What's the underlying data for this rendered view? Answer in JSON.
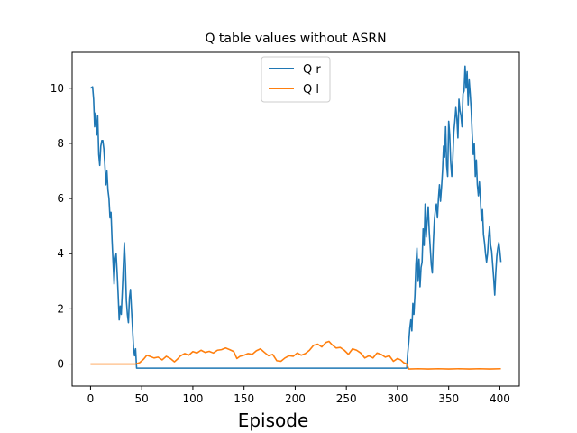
{
  "chart_data": {
    "type": "line",
    "title": "Q table values without ASRN",
    "xlabel": "Episode",
    "ylabel": "",
    "xlim": [
      -18,
      419
    ],
    "ylim": [
      -0.8,
      11.3
    ],
    "xticks": [
      0,
      50,
      100,
      150,
      200,
      250,
      300,
      350,
      400
    ],
    "yticks": [
      0,
      2,
      4,
      6,
      8,
      10
    ],
    "grid": false,
    "legend": "upper-center",
    "series": [
      {
        "name": "Q r",
        "color": "#1f77b4",
        "points": [
          [
            0,
            10.0
          ],
          [
            2,
            10.05
          ],
          [
            3,
            9.6
          ],
          [
            4,
            8.6
          ],
          [
            5,
            9.1
          ],
          [
            6,
            8.3
          ],
          [
            7,
            9.0
          ],
          [
            8,
            7.6
          ],
          [
            9,
            7.2
          ],
          [
            10,
            7.9
          ],
          [
            11,
            8.1
          ],
          [
            12,
            8.1
          ],
          [
            13,
            7.8
          ],
          [
            14,
            7.2
          ],
          [
            15,
            6.5
          ],
          [
            16,
            7.0
          ],
          [
            17,
            6.3
          ],
          [
            18,
            6.0
          ],
          [
            19,
            5.3
          ],
          [
            20,
            5.5
          ],
          [
            21,
            4.5
          ],
          [
            22,
            3.7
          ],
          [
            23,
            2.9
          ],
          [
            24,
            3.8
          ],
          [
            25,
            4.0
          ],
          [
            26,
            3.3
          ],
          [
            27,
            2.5
          ],
          [
            28,
            1.6
          ],
          [
            29,
            2.1
          ],
          [
            30,
            1.8
          ],
          [
            31,
            2.6
          ],
          [
            32,
            3.5
          ],
          [
            33,
            4.4
          ],
          [
            34,
            3.6
          ],
          [
            35,
            2.3
          ],
          [
            36,
            1.8
          ],
          [
            37,
            1.5
          ],
          [
            38,
            2.4
          ],
          [
            39,
            2.7
          ],
          [
            40,
            2.0
          ],
          [
            41,
            1.3
          ],
          [
            42,
            0.6
          ],
          [
            43,
            0.3
          ],
          [
            44,
            0.55
          ],
          [
            45,
            -0.15
          ],
          [
            100,
            -0.15
          ],
          [
            150,
            -0.15
          ],
          [
            200,
            -0.15
          ],
          [
            250,
            -0.15
          ],
          [
            309,
            -0.15
          ],
          [
            310,
            0.4
          ],
          [
            311,
            0.8
          ],
          [
            312,
            1.3
          ],
          [
            313,
            1.6
          ],
          [
            314,
            1.2
          ],
          [
            315,
            2.2
          ],
          [
            316,
            1.8
          ],
          [
            317,
            2.5
          ],
          [
            318,
            3.6
          ],
          [
            319,
            4.2
          ],
          [
            320,
            3.0
          ],
          [
            321,
            3.8
          ],
          [
            322,
            2.8
          ],
          [
            323,
            3.5
          ],
          [
            324,
            3.7
          ],
          [
            325,
            4.9
          ],
          [
            326,
            4.3
          ],
          [
            327,
            5.8
          ],
          [
            328,
            4.6
          ],
          [
            329,
            5.2
          ],
          [
            330,
            5.7
          ],
          [
            331,
            4.8
          ],
          [
            332,
            4.2
          ],
          [
            333,
            3.6
          ],
          [
            334,
            3.3
          ],
          [
            335,
            4.4
          ],
          [
            336,
            5.2
          ],
          [
            337,
            5.6
          ],
          [
            338,
            5.8
          ],
          [
            339,
            5.3
          ],
          [
            340,
            6.0
          ],
          [
            341,
            6.5
          ],
          [
            342,
            5.9
          ],
          [
            343,
            6.4
          ],
          [
            344,
            7.0
          ],
          [
            345,
            7.9
          ],
          [
            346,
            7.5
          ],
          [
            347,
            8.6
          ],
          [
            348,
            7.2
          ],
          [
            349,
            6.8
          ],
          [
            350,
            8.8
          ],
          [
            351,
            8.3
          ],
          [
            352,
            7.3
          ],
          [
            353,
            6.8
          ],
          [
            354,
            7.4
          ],
          [
            355,
            8.4
          ],
          [
            356,
            8.8
          ],
          [
            357,
            9.3
          ],
          [
            358,
            8.9
          ],
          [
            359,
            8.2
          ],
          [
            360,
            9.6
          ],
          [
            361,
            9.2
          ],
          [
            362,
            9.0
          ],
          [
            363,
            8.6
          ],
          [
            364,
            9.8
          ],
          [
            365,
            9.9
          ],
          [
            366,
            10.8
          ],
          [
            367,
            10.0
          ],
          [
            368,
            10.6
          ],
          [
            369,
            9.4
          ],
          [
            370,
            10.3
          ],
          [
            371,
            9.8
          ],
          [
            372,
            9.2
          ],
          [
            373,
            8.3
          ],
          [
            374,
            7.6
          ],
          [
            375,
            8.0
          ],
          [
            376,
            6.8
          ],
          [
            377,
            7.4
          ],
          [
            378,
            6.5
          ],
          [
            379,
            6.1
          ],
          [
            380,
            6.6
          ],
          [
            381,
            6.0
          ],
          [
            382,
            5.2
          ],
          [
            383,
            5.6
          ],
          [
            384,
            4.7
          ],
          [
            385,
            4.4
          ],
          [
            386,
            4.0
          ],
          [
            387,
            3.7
          ],
          [
            388,
            4.0
          ],
          [
            389,
            4.6
          ],
          [
            390,
            5.0
          ],
          [
            391,
            4.3
          ],
          [
            392,
            4.1
          ],
          [
            393,
            3.6
          ],
          [
            394,
            3.1
          ],
          [
            395,
            2.5
          ],
          [
            396,
            3.3
          ],
          [
            397,
            3.9
          ],
          [
            398,
            4.2
          ],
          [
            399,
            4.4
          ],
          [
            400,
            4.1
          ],
          [
            401,
            3.7
          ]
        ]
      },
      {
        "name": "Q l",
        "color": "#ff7f0e",
        "points": [
          [
            0,
            0.0
          ],
          [
            10,
            0.0
          ],
          [
            20,
            0.0
          ],
          [
            30,
            0.0
          ],
          [
            40,
            0.0
          ],
          [
            44,
            0.0
          ],
          [
            48,
            0.05
          ],
          [
            52,
            0.18
          ],
          [
            55,
            0.32
          ],
          [
            58,
            0.28
          ],
          [
            62,
            0.22
          ],
          [
            66,
            0.25
          ],
          [
            70,
            0.15
          ],
          [
            74,
            0.28
          ],
          [
            78,
            0.2
          ],
          [
            82,
            0.08
          ],
          [
            85,
            0.18
          ],
          [
            88,
            0.3
          ],
          [
            92,
            0.38
          ],
          [
            96,
            0.32
          ],
          [
            100,
            0.45
          ],
          [
            104,
            0.4
          ],
          [
            108,
            0.5
          ],
          [
            112,
            0.42
          ],
          [
            116,
            0.46
          ],
          [
            120,
            0.4
          ],
          [
            124,
            0.5
          ],
          [
            128,
            0.52
          ],
          [
            132,
            0.58
          ],
          [
            136,
            0.52
          ],
          [
            140,
            0.45
          ],
          [
            143,
            0.2
          ],
          [
            146,
            0.28
          ],
          [
            150,
            0.32
          ],
          [
            154,
            0.38
          ],
          [
            158,
            0.35
          ],
          [
            162,
            0.48
          ],
          [
            166,
            0.55
          ],
          [
            170,
            0.42
          ],
          [
            174,
            0.3
          ],
          [
            178,
            0.35
          ],
          [
            182,
            0.12
          ],
          [
            186,
            0.1
          ],
          [
            190,
            0.22
          ],
          [
            194,
            0.3
          ],
          [
            198,
            0.28
          ],
          [
            202,
            0.4
          ],
          [
            206,
            0.32
          ],
          [
            210,
            0.38
          ],
          [
            214,
            0.5
          ],
          [
            218,
            0.68
          ],
          [
            222,
            0.72
          ],
          [
            226,
            0.62
          ],
          [
            230,
            0.78
          ],
          [
            233,
            0.82
          ],
          [
            236,
            0.7
          ],
          [
            240,
            0.58
          ],
          [
            244,
            0.6
          ],
          [
            248,
            0.5
          ],
          [
            252,
            0.35
          ],
          [
            256,
            0.55
          ],
          [
            260,
            0.5
          ],
          [
            264,
            0.4
          ],
          [
            268,
            0.22
          ],
          [
            272,
            0.3
          ],
          [
            276,
            0.22
          ],
          [
            280,
            0.4
          ],
          [
            284,
            0.35
          ],
          [
            288,
            0.25
          ],
          [
            292,
            0.3
          ],
          [
            296,
            0.1
          ],
          [
            300,
            0.2
          ],
          [
            303,
            0.15
          ],
          [
            306,
            0.05
          ],
          [
            309,
            0.0
          ],
          [
            311,
            -0.18
          ],
          [
            320,
            -0.17
          ],
          [
            330,
            -0.18
          ],
          [
            340,
            -0.17
          ],
          [
            350,
            -0.18
          ],
          [
            360,
            -0.17
          ],
          [
            370,
            -0.18
          ],
          [
            380,
            -0.17
          ],
          [
            390,
            -0.18
          ],
          [
            401,
            -0.17
          ]
        ]
      }
    ]
  }
}
